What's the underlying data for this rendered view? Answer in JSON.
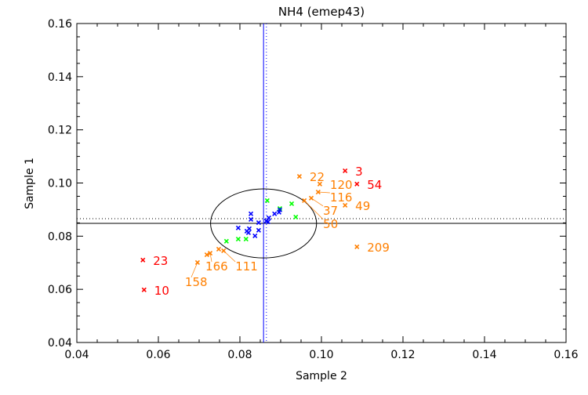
{
  "chart_data": {
    "type": "scatter",
    "title": "NH4 (emep43)",
    "xlabel": "Sample 2",
    "ylabel": "Sample 1",
    "xlim": [
      0.04,
      0.16
    ],
    "ylim": [
      0.04,
      0.16
    ],
    "xticks": [
      "0.04",
      "0.06",
      "0.08",
      "0.10",
      "0.12",
      "0.14",
      "0.16"
    ],
    "yticks": [
      "0.04",
      "0.06",
      "0.08",
      "0.10",
      "0.12",
      "0.14",
      "0.16"
    ],
    "grid": false,
    "marker": "x",
    "reference_lines": {
      "horizontal_solid": 0.0848,
      "horizontal_dotted": 0.0866,
      "vertical_solid": 0.0858,
      "vertical_dotted": 0.0865,
      "circle_center": [
        0.0858,
        0.0848
      ],
      "circle_radius": 0.013,
      "colors": {
        "horizontal": "#000000",
        "vertical": "#0000ff",
        "circle": "#000000"
      }
    },
    "series": [
      {
        "color": "#ff0000",
        "points": [
          {
            "x": 0.1058,
            "y": 0.1046,
            "label": "3"
          },
          {
            "x": 0.1087,
            "y": 0.0996,
            "label": "54"
          },
          {
            "x": 0.0562,
            "y": 0.071,
            "label": "23"
          },
          {
            "x": 0.0565,
            "y": 0.0598,
            "label": "10"
          }
        ]
      },
      {
        "color": "#ff7f00",
        "points": [
          {
            "x": 0.0946,
            "y": 0.1025,
            "label": "22"
          },
          {
            "x": 0.0996,
            "y": 0.0996,
            "label": "120"
          },
          {
            "x": 0.0992,
            "y": 0.0966,
            "label": "116"
          },
          {
            "x": 0.0975,
            "y": 0.0943,
            "label": "37"
          },
          {
            "x": 0.0958,
            "y": 0.0934,
            "label": "50"
          },
          {
            "x": 0.1058,
            "y": 0.0916,
            "label": "49"
          },
          {
            "x": 0.1087,
            "y": 0.076,
            "label": "209"
          },
          {
            "x": 0.0696,
            "y": 0.0701,
            "label": "158"
          },
          {
            "x": 0.0719,
            "y": 0.073,
            "label": ""
          },
          {
            "x": 0.0727,
            "y": 0.0736,
            "label": "166"
          },
          {
            "x": 0.0748,
            "y": 0.0751,
            "label": ""
          },
          {
            "x": 0.076,
            "y": 0.0745,
            "label": "111"
          }
        ]
      },
      {
        "color": "#00ff00",
        "points": [
          {
            "x": 0.0867,
            "y": 0.0934
          },
          {
            "x": 0.0927,
            "y": 0.0922
          },
          {
            "x": 0.0898,
            "y": 0.0904
          },
          {
            "x": 0.0937,
            "y": 0.0872
          },
          {
            "x": 0.0767,
            "y": 0.0781
          },
          {
            "x": 0.0796,
            "y": 0.0789
          },
          {
            "x": 0.0815,
            "y": 0.0789
          }
        ]
      },
      {
        "color": "#0000ff",
        "points": [
          {
            "x": 0.0827,
            "y": 0.0884
          },
          {
            "x": 0.0827,
            "y": 0.0863
          },
          {
            "x": 0.0796,
            "y": 0.0831
          },
          {
            "x": 0.0846,
            "y": 0.0851
          },
          {
            "x": 0.0846,
            "y": 0.0822
          },
          {
            "x": 0.0837,
            "y": 0.0801
          },
          {
            "x": 0.0817,
            "y": 0.0819
          },
          {
            "x": 0.0823,
            "y": 0.0828
          },
          {
            "x": 0.0821,
            "y": 0.0813
          },
          {
            "x": 0.0865,
            "y": 0.0857
          },
          {
            "x": 0.0871,
            "y": 0.0869
          },
          {
            "x": 0.0885,
            "y": 0.0884
          },
          {
            "x": 0.0896,
            "y": 0.089
          },
          {
            "x": 0.0898,
            "y": 0.0899
          },
          {
            "x": 0.0869,
            "y": 0.0854
          }
        ]
      }
    ]
  }
}
